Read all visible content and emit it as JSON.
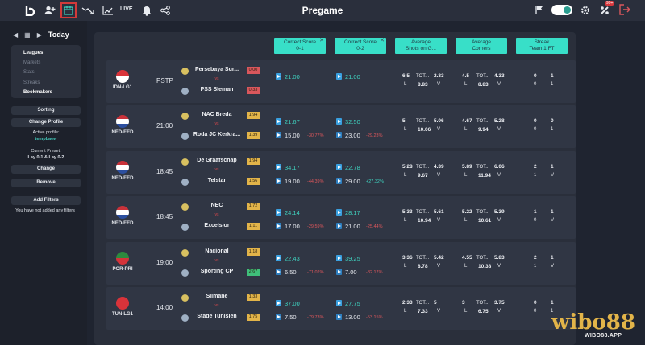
{
  "topbar": {
    "title": "Pregame",
    "live_label": "LIVE",
    "notification_count": "99+",
    "icons": [
      "logo-icon",
      "user-add-icon",
      "calendar-icon",
      "trend-icon",
      "chart-icon",
      "bell-icon",
      "share-icon",
      "flag-icon",
      "toggle",
      "gift-icon",
      "logout-icon"
    ],
    "accent": "#2a9d90"
  },
  "sidebar": {
    "date_label": "Today",
    "nav": [
      "Leagues",
      "Markets",
      "Stats",
      "Streaks",
      "Bookmakers"
    ],
    "sorting": "Sorting",
    "change_profile": "Change Profile",
    "active_profile_label": "Active profile:",
    "active_profile_value": "tempbaew",
    "current_preset_label": "Current Preset:",
    "current_preset_value": "Lay 0-1 & Lay 0-2",
    "change": "Change",
    "remove": "Remove",
    "add_filters": "Add Filters",
    "no_filters": "You have not added any filters"
  },
  "columns": [
    {
      "line1": "Correct Score",
      "line2": "0-1",
      "closable": true
    },
    {
      "line1": "Correct Score",
      "line2": "0-2",
      "closable": true
    },
    {
      "line1": "Average",
      "line2": "Shots on G...",
      "closable": false
    },
    {
      "line1": "Average",
      "line2": "Corners",
      "closable": false
    },
    {
      "line1": "Streak",
      "line2": "Team 1 FT",
      "closable": false
    }
  ],
  "matches": [
    {
      "league": "IDN-LG1",
      "time": "PSTP",
      "home": "Persebaya Sur...",
      "away": "PSS Sleman",
      "vs": "vs",
      "home_odds": "0.00",
      "away_odds": "0.33",
      "cs01": "21.00",
      "cs01_low": "",
      "cs01_chg": "",
      "cs02": "21.00",
      "cs02_low": "",
      "cs02_chg": "",
      "shots_a": "6.5",
      "shots_b": "TOT...",
      "shots_c": "2.33",
      "shots_d": "L",
      "shots_e": "8.83",
      "shots_f": "V",
      "corn_a": "4.5",
      "corn_b": "TOT...",
      "corn_c": "4.33",
      "corn_d": "L",
      "corn_e": "8.83",
      "corn_f": "V",
      "streak_a": "0",
      "streak_b": "1",
      "streak_c": "0",
      "streak_d": "1",
      "flag_colors": [
        "#d9333a",
        "#ffffff"
      ]
    },
    {
      "league": "NED-EED",
      "time": "21:00",
      "home": "NAC Breda",
      "away": "Roda JC Kerkra...",
      "vs": "vs",
      "home_odds": "1.94",
      "away_odds": "1.39",
      "cs01": "21.67",
      "cs01_low": "15.00",
      "cs01_chg": "-30.77%",
      "cs02": "32.50",
      "cs02_low": "23.00",
      "cs02_chg": "-29.23%",
      "shots_a": "5",
      "shots_b": "TOT...",
      "shots_c": "5.06",
      "shots_d": "L",
      "shots_e": "10.06",
      "shots_f": "V",
      "corn_a": "4.67",
      "corn_b": "TOT...",
      "corn_c": "5.28",
      "corn_d": "L",
      "corn_e": "9.94",
      "corn_f": "V",
      "streak_a": "0",
      "streak_b": "0",
      "streak_c": "0",
      "streak_d": "1",
      "flag_colors": [
        "#c9323a",
        "#ffffff",
        "#2c4fa0"
      ]
    },
    {
      "league": "NED-EED",
      "time": "18:45",
      "home": "De Graafschap",
      "away": "Telstar",
      "vs": "vs",
      "home_odds": "1.94",
      "away_odds": "1.56",
      "cs01": "34.17",
      "cs01_low": "19.00",
      "cs01_chg": "-44.39%",
      "cs02": "22.78",
      "cs02_low": "29.00",
      "cs02_chg": "+27.32%",
      "shots_a": "5.28",
      "shots_b": "TOT...",
      "shots_c": "4.39",
      "shots_d": "L",
      "shots_e": "9.67",
      "shots_f": "V",
      "corn_a": "5.89",
      "corn_b": "TOT...",
      "corn_c": "6.06",
      "corn_d": "L",
      "corn_e": "11.94",
      "corn_f": "V",
      "streak_a": "2",
      "streak_b": "1",
      "streak_c": "1",
      "streak_d": "V",
      "flag_colors": [
        "#c9323a",
        "#ffffff",
        "#2c4fa0"
      ]
    },
    {
      "league": "NED-EED",
      "time": "18:45",
      "home": "NEC",
      "away": "Excelsior",
      "vs": "vs",
      "home_odds": "1.72",
      "away_odds": "1.11",
      "cs01": "24.14",
      "cs01_low": "17.00",
      "cs01_chg": "-29.59%",
      "cs02": "28.17",
      "cs02_low": "21.00",
      "cs02_chg": "-25.44%",
      "shots_a": "5.33",
      "shots_b": "TOT...",
      "shots_c": "5.61",
      "shots_d": "L",
      "shots_e": "10.94",
      "shots_f": "V",
      "corn_a": "5.22",
      "corn_b": "TOT...",
      "corn_c": "5.39",
      "corn_d": "L",
      "corn_e": "10.61",
      "corn_f": "V",
      "streak_a": "1",
      "streak_b": "1",
      "streak_c": "0",
      "streak_d": "V",
      "flag_colors": [
        "#c9323a",
        "#ffffff",
        "#2c4fa0"
      ]
    },
    {
      "league": "POR-PRI",
      "time": "19:00",
      "home": "Nacional",
      "away": "Sporting CP",
      "vs": "vs",
      "home_odds": "1.18",
      "away_odds": "2.67",
      "cs01": "22.43",
      "cs01_low": "6.50",
      "cs01_chg": "-71.02%",
      "cs02": "39.25",
      "cs02_low": "7.00",
      "cs02_chg": "-82.17%",
      "shots_a": "3.36",
      "shots_b": "TOT...",
      "shots_c": "5.42",
      "shots_d": "L",
      "shots_e": "8.78",
      "shots_f": "V",
      "corn_a": "4.55",
      "corn_b": "TOT...",
      "corn_c": "5.83",
      "corn_d": "L",
      "corn_e": "10.38",
      "corn_f": "V",
      "streak_a": "2",
      "streak_b": "1",
      "streak_c": "1",
      "streak_d": "V",
      "flag_colors": [
        "#2d8a3e",
        "#d4333a"
      ]
    },
    {
      "league": "TUN-LG1",
      "time": "14:00",
      "home": "Slimane",
      "away": "Stade Tunisien",
      "vs": "vs",
      "home_odds": "1.33",
      "away_odds": "1.75",
      "cs01": "37.00",
      "cs01_low": "7.50",
      "cs01_chg": "-79.73%",
      "cs02": "27.75",
      "cs02_low": "13.00",
      "cs02_chg": "-53.15%",
      "shots_a": "2.33",
      "shots_b": "TOT...",
      "shots_c": "5",
      "shots_d": "L",
      "shots_e": "7.33",
      "shots_f": "V",
      "corn_a": "3",
      "corn_b": "TOT...",
      "corn_c": "3.75",
      "corn_d": "L",
      "corn_e": "6.75",
      "corn_f": "V",
      "streak_a": "0",
      "streak_b": "1",
      "streak_c": "0",
      "streak_d": "1",
      "flag_colors": [
        "#d9333a",
        "#d9333a"
      ]
    }
  ],
  "watermark": {
    "brand": "wibo88",
    "url": "WIBO88.APP"
  }
}
